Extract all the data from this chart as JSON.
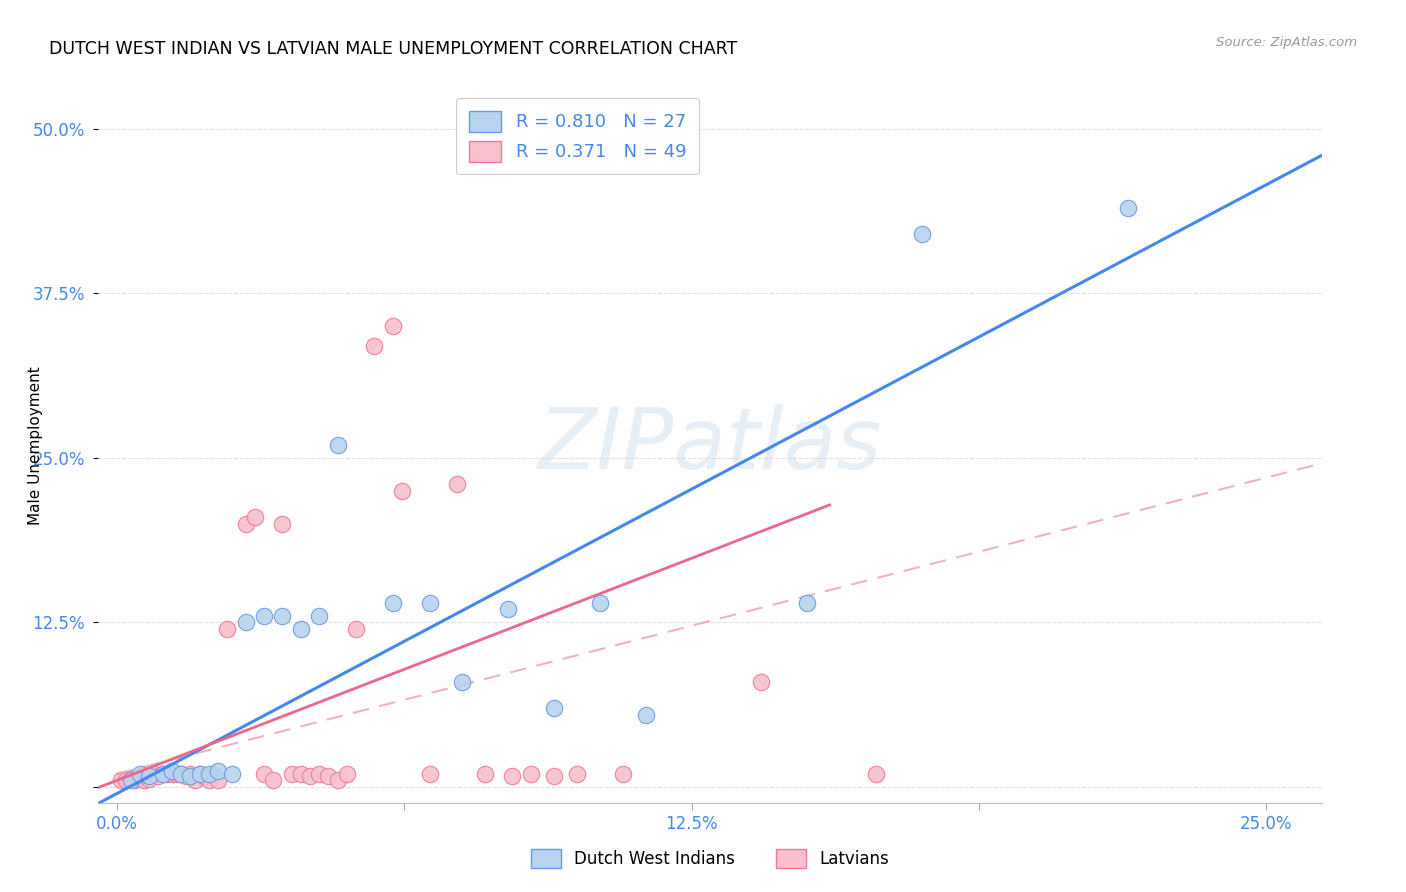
{
  "title": "DUTCH WEST INDIAN VS LATVIAN MALE UNEMPLOYMENT CORRELATION CHART",
  "source": "Source: ZipAtlas.com",
  "ylabel": "Male Unemployment",
  "x_ticks": [
    0.0,
    0.0625,
    0.125,
    0.1875,
    0.25
  ],
  "x_tick_labels": [
    "0.0%",
    "",
    "12.5%",
    "",
    "25.0%"
  ],
  "y_ticks": [
    0.0,
    0.125,
    0.25,
    0.375,
    0.5
  ],
  "y_tick_labels": [
    "",
    "12.5%",
    "25.0%",
    "37.5%",
    "50.0%"
  ],
  "blue_R": 0.81,
  "blue_N": 27,
  "pink_R": 0.371,
  "pink_N": 49,
  "blue_dot_face": "#b8d4f0",
  "blue_dot_edge": "#6699dd",
  "pink_dot_face": "#f8c0cc",
  "pink_dot_edge": "#ee7799",
  "blue_line_color": "#4488ee",
  "pink_line_color": "#ee6688",
  "pink_dash_color": "#e8a0b0",
  "blue_dots": [
    [
      0.003,
      0.005
    ],
    [
      0.005,
      0.01
    ],
    [
      0.007,
      0.008
    ],
    [
      0.01,
      0.01
    ],
    [
      0.012,
      0.012
    ],
    [
      0.014,
      0.01
    ],
    [
      0.016,
      0.008
    ],
    [
      0.018,
      0.01
    ],
    [
      0.02,
      0.01
    ],
    [
      0.022,
      0.012
    ],
    [
      0.025,
      0.01
    ],
    [
      0.028,
      0.125
    ],
    [
      0.032,
      0.13
    ],
    [
      0.036,
      0.13
    ],
    [
      0.04,
      0.12
    ],
    [
      0.044,
      0.13
    ],
    [
      0.048,
      0.26
    ],
    [
      0.06,
      0.14
    ],
    [
      0.068,
      0.14
    ],
    [
      0.075,
      0.08
    ],
    [
      0.085,
      0.135
    ],
    [
      0.095,
      0.06
    ],
    [
      0.105,
      0.14
    ],
    [
      0.115,
      0.055
    ],
    [
      0.15,
      0.14
    ],
    [
      0.175,
      0.42
    ],
    [
      0.22,
      0.44
    ]
  ],
  "pink_dots": [
    [
      0.001,
      0.005
    ],
    [
      0.002,
      0.005
    ],
    [
      0.003,
      0.006
    ],
    [
      0.004,
      0.005
    ],
    [
      0.005,
      0.008
    ],
    [
      0.006,
      0.005
    ],
    [
      0.007,
      0.006
    ],
    [
      0.008,
      0.01
    ],
    [
      0.009,
      0.008
    ],
    [
      0.01,
      0.01
    ],
    [
      0.011,
      0.01
    ],
    [
      0.012,
      0.01
    ],
    [
      0.013,
      0.01
    ],
    [
      0.014,
      0.01
    ],
    [
      0.015,
      0.008
    ],
    [
      0.016,
      0.01
    ],
    [
      0.017,
      0.005
    ],
    [
      0.018,
      0.01
    ],
    [
      0.019,
      0.008
    ],
    [
      0.02,
      0.005
    ],
    [
      0.021,
      0.01
    ],
    [
      0.022,
      0.005
    ],
    [
      0.024,
      0.12
    ],
    [
      0.028,
      0.2
    ],
    [
      0.03,
      0.205
    ],
    [
      0.032,
      0.01
    ],
    [
      0.034,
      0.005
    ],
    [
      0.036,
      0.2
    ],
    [
      0.038,
      0.01
    ],
    [
      0.04,
      0.01
    ],
    [
      0.042,
      0.008
    ],
    [
      0.044,
      0.01
    ],
    [
      0.046,
      0.008
    ],
    [
      0.048,
      0.005
    ],
    [
      0.05,
      0.01
    ],
    [
      0.052,
      0.12
    ],
    [
      0.056,
      0.335
    ],
    [
      0.06,
      0.35
    ],
    [
      0.062,
      0.225
    ],
    [
      0.068,
      0.01
    ],
    [
      0.074,
      0.23
    ],
    [
      0.08,
      0.01
    ],
    [
      0.086,
      0.008
    ],
    [
      0.09,
      0.01
    ],
    [
      0.095,
      0.008
    ],
    [
      0.1,
      0.01
    ],
    [
      0.11,
      0.01
    ],
    [
      0.14,
      0.08
    ],
    [
      0.165,
      0.01
    ]
  ],
  "watermark": "ZIPatlas",
  "legend_label_blue": "Dutch West Indians",
  "legend_label_pink": "Latvians",
  "background_color": "#ffffff",
  "grid_color": "#e0e0e0"
}
